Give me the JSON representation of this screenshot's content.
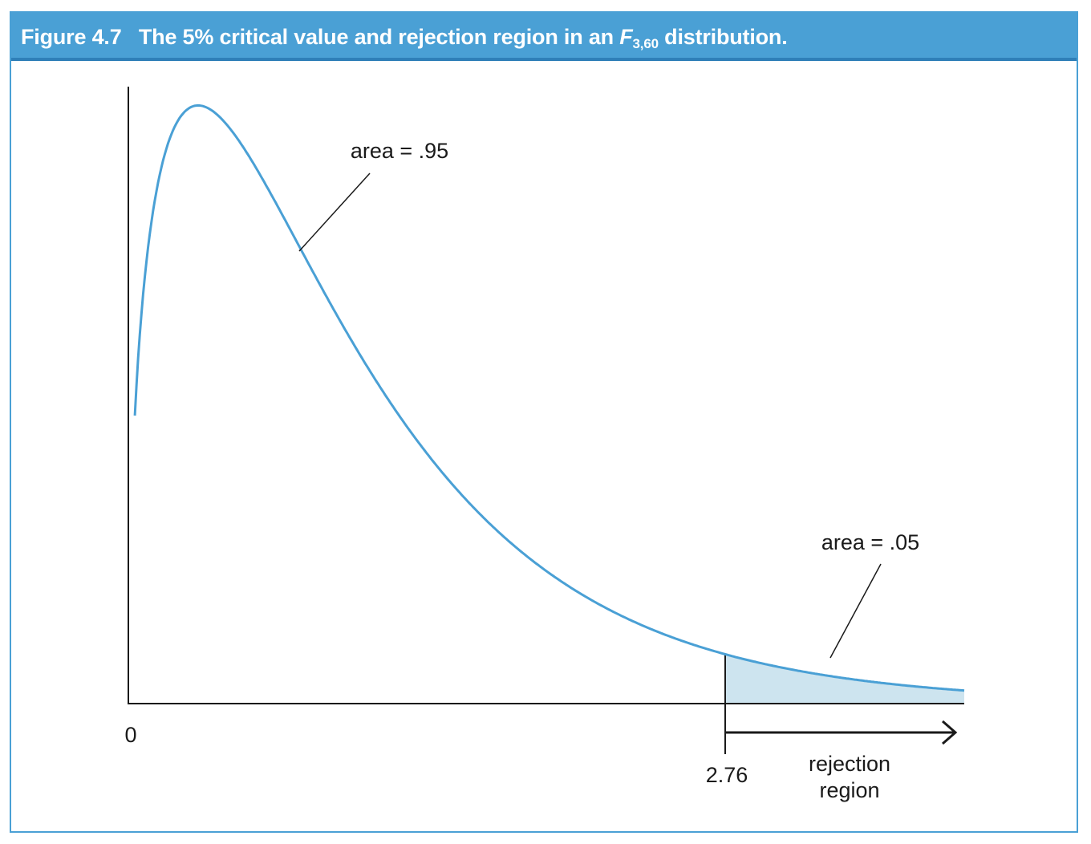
{
  "figure": {
    "number": "Figure 4.7",
    "title_before": "The 5% critical value and rejection region in an",
    "distribution_symbol": "F",
    "distribution_subscript": "3,60",
    "title_after": "distribution."
  },
  "colors": {
    "header_bg": "#4aa0d5",
    "header_rule": "#2f7fb8",
    "curve": "#4aa0d5",
    "shade": "#cde4ef",
    "axis": "#1a1a1a"
  },
  "chart_data": {
    "type": "area",
    "distribution": "F",
    "df1": 3,
    "df2": 60,
    "alpha": 0.05,
    "critical_value": 2.76,
    "x_tick_labels": [
      "0",
      "2.76"
    ],
    "shaded_region": "right tail",
    "annotations": {
      "body_area": "area = .95",
      "tail_area": "area = .05",
      "rejection_line1": "rejection",
      "rejection_line2": "region"
    }
  }
}
